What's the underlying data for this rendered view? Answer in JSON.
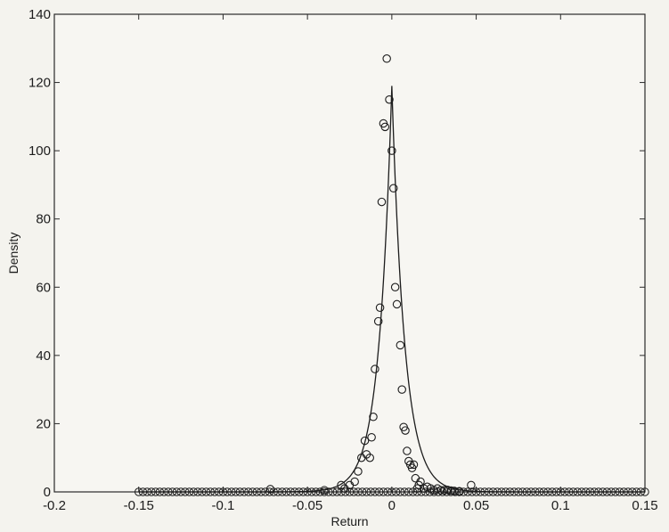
{
  "chart_data": {
    "type": "scatter",
    "title": "",
    "xlabel": "Return",
    "ylabel": "Density",
    "xlim": [
      -0.2,
      0.15
    ],
    "ylim": [
      0,
      140
    ],
    "xticks": [
      -0.2,
      -0.15,
      -0.1,
      -0.05,
      0,
      0.05,
      0.1,
      0.15
    ],
    "xtick_labels": [
      "-0.2",
      "-0.15",
      "-0.1",
      "-0.05",
      "0",
      "0.05",
      "0.1",
      "0.15"
    ],
    "yticks": [
      0,
      20,
      40,
      60,
      80,
      100,
      120,
      140
    ],
    "ytick_labels": [
      "0",
      "20",
      "40",
      "60",
      "80",
      "100",
      "120",
      "140"
    ],
    "grid": false,
    "legend": "none",
    "series": [
      {
        "kind": "markers",
        "marker": "open-circle",
        "color": "#1c1c1c",
        "x": [
          -0.072,
          -0.04,
          -0.03,
          -0.028,
          -0.025,
          -0.022,
          -0.02,
          -0.018,
          -0.016,
          -0.015,
          -0.013,
          -0.012,
          -0.011,
          -0.01,
          -0.008,
          -0.007,
          -0.006,
          -0.005,
          -0.004,
          -0.003,
          -0.0015,
          0.0,
          0.001,
          0.002,
          0.003,
          0.005,
          0.006,
          0.007,
          0.008,
          0.009,
          0.01,
          0.011,
          0.012,
          0.013,
          0.014,
          0.015,
          0.016,
          0.017,
          0.019,
          0.021,
          0.023,
          0.025,
          0.027,
          0.029,
          0.031,
          0.033,
          0.035,
          0.037,
          0.04,
          0.047
        ],
        "y": [
          0.8,
          0.5,
          2,
          1,
          2,
          3,
          6,
          10,
          15,
          11,
          10,
          16,
          22,
          36,
          50,
          54,
          85,
          108,
          107,
          127,
          115,
          100,
          89,
          60,
          55,
          43,
          30,
          19,
          18,
          12,
          9,
          8,
          7,
          8,
          4,
          1,
          2,
          3,
          1,
          1.5,
          1,
          0.5,
          1,
          0.5,
          0.5,
          0.6,
          0.4,
          0.3,
          0.2,
          2
        ]
      },
      {
        "kind": "markers",
        "marker": "open-circle",
        "color": "#1c1c1c",
        "note_free": true,
        "x_range": [
          -0.15,
          0.15
        ],
        "step": 0.0025,
        "y_constant": 0
      },
      {
        "kind": "line",
        "color": "#1c1c1c",
        "peak_x": 0,
        "peak_y": 119,
        "decay": 0.0076
      }
    ]
  }
}
